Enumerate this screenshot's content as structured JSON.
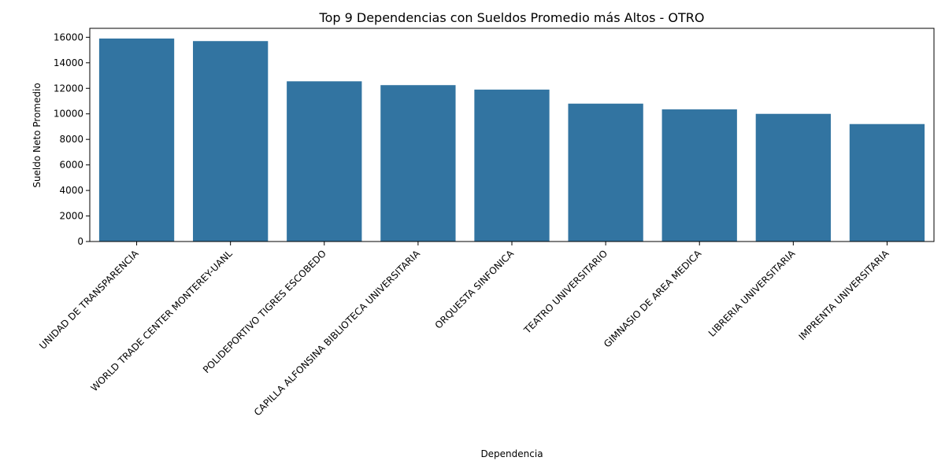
{
  "chart_data": {
    "type": "bar",
    "title": "Top 9 Dependencias con Sueldos Promedio más Altos - OTRO",
    "xlabel": "Dependencia",
    "ylabel": "Sueldo Neto Promedio",
    "categories": [
      "UNIDAD DE TRANSPARENCIA",
      "WORLD TRADE CENTER MONTEREY-UANL",
      "POLIDEPORTIVO TIGRES ESCOBEDO",
      "CAPILLA ALFONSINA BIBLIOTECA UNIVERSITARIA",
      "ORQUESTA SINFONICA",
      "TEATRO UNIVERSITARIO",
      "GIMNASIO DE AREA MEDICA",
      "LIBRERIA UNIVERSITARIA",
      "IMPRENTA UNIVERSITARIA"
    ],
    "values": [
      15900,
      15700,
      12550,
      12250,
      11900,
      10800,
      10350,
      10000,
      9200
    ],
    "yticks": [
      0,
      2000,
      4000,
      6000,
      8000,
      10000,
      12000,
      14000,
      16000
    ],
    "ylim": [
      0,
      16700
    ],
    "bar_color": "#3274a1",
    "grid": false,
    "legend": "none"
  }
}
